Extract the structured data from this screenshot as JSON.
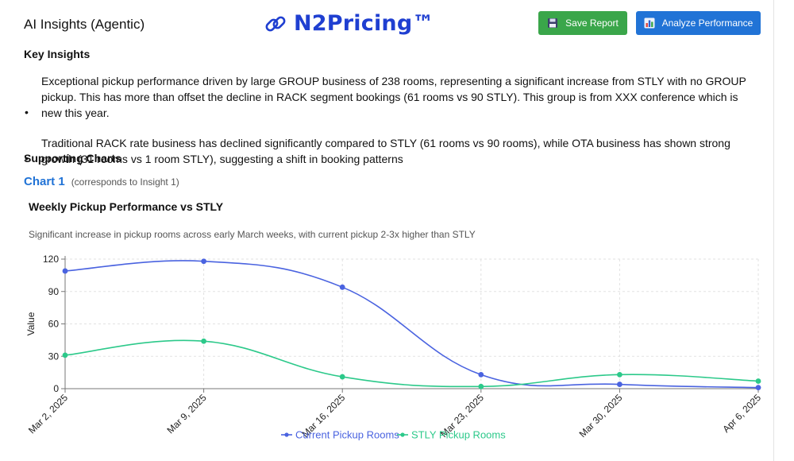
{
  "header": {
    "title": "AI Insights (Agentic)",
    "brand": "N2Pricing™",
    "brand_color": "#1f3fd1",
    "save_label": "Save Report",
    "save_color": "#3aa64a",
    "analyze_label": "Analyze Performance",
    "analyze_color": "#2173d6"
  },
  "key_insights": {
    "heading": "Key Insights",
    "bullet": "•",
    "items": [
      "Exceptional pickup performance driven by large GROUP business of 238 rooms, representing a significant increase from STLY with no GROUP pickup. This has more than offset the decline in RACK segment bookings (61 rooms vs 90 STLY). This group is from XXX conference which is new this year.",
      "Traditional RACK rate business has declined significantly compared to STLY (61 rooms vs 90 rooms), while OTA business has shown strong growth (31 rooms vs 1 room STLY), suggesting a shift in booking patterns"
    ]
  },
  "supporting_charts": {
    "heading": "Supporting Charts",
    "chart_label": "Chart 1",
    "chart_note": "(corresponds to Insight 1)"
  },
  "chart_data": {
    "type": "line",
    "title": "Weekly Pickup Performance vs STLY",
    "subtitle": "Significant increase in pickup rooms across early March weeks, with current pickup 2-3x higher than STLY",
    "xlabel": "",
    "ylabel": "Value",
    "categories": [
      "Mar 2, 2025",
      "Mar 9, 2025",
      "Mar 16, 2025",
      "Mar 23, 2025",
      "Mar 30, 2025",
      "Apr 6, 2025"
    ],
    "ylim": [
      0,
      120
    ],
    "yticks": [
      0,
      30,
      60,
      90,
      120
    ],
    "grid": true,
    "legend_position": "bottom",
    "series": [
      {
        "name": "Current Pickup Rooms",
        "values": [
          109,
          118,
          94,
          13,
          4,
          1
        ],
        "color": "#4a63e0"
      },
      {
        "name": "STLY Pickup Rooms",
        "values": [
          31,
          44,
          11,
          2,
          13,
          7
        ],
        "color": "#2cc98a"
      }
    ]
  }
}
